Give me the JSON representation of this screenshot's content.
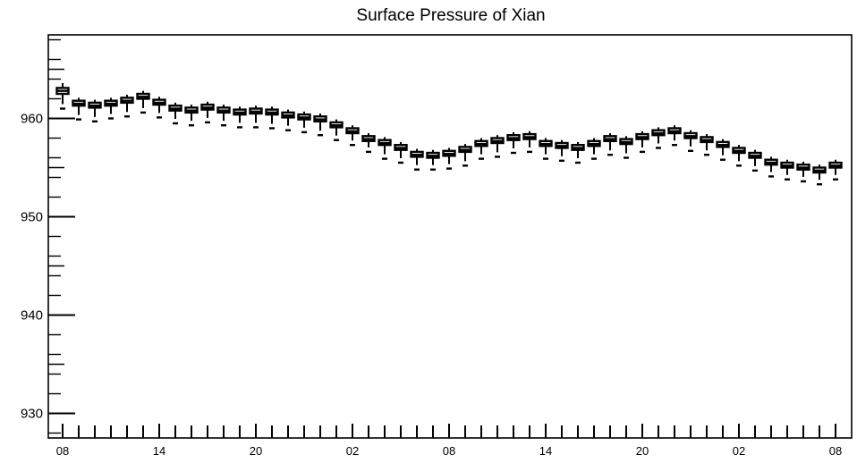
{
  "chart_data": {
    "type": "boxplot",
    "title": "Surface Pressure of Xian",
    "xlabel": "",
    "ylabel": "",
    "ylim": [
      927.5,
      968.5
    ],
    "y_ticks": [
      930,
      940,
      950,
      960
    ],
    "x_tick_labels": [
      "08",
      "14",
      "20",
      "02",
      "08",
      "14",
      "20",
      "02",
      "08"
    ],
    "grid": false,
    "legend": "none",
    "box_color": "#000000",
    "series": [
      {
        "median": [
          962.8,
          961.5,
          961.3,
          961.5,
          961.8,
          962.2,
          961.6,
          961.0,
          960.8,
          961.1,
          960.8,
          960.6,
          960.7,
          960.6,
          960.3,
          960.1,
          959.9,
          959.3,
          958.7,
          957.9,
          957.5,
          957.0,
          956.3,
          956.2,
          956.4,
          956.8,
          957.4,
          957.7,
          958.0,
          958.1,
          957.4,
          957.2,
          957.0,
          957.4,
          957.9,
          957.6,
          958.1,
          958.5,
          958.7,
          958.2,
          957.8,
          957.3,
          956.7,
          956.2,
          955.5,
          955.2,
          955.0,
          954.7,
          955.2
        ],
        "q1": [
          962.5,
          961.3,
          961.1,
          961.3,
          961.6,
          962.0,
          961.4,
          960.8,
          960.6,
          960.9,
          960.6,
          960.4,
          960.5,
          960.4,
          960.1,
          959.9,
          959.7,
          959.1,
          958.5,
          957.7,
          957.3,
          956.8,
          956.1,
          956.0,
          956.2,
          956.6,
          957.2,
          957.5,
          957.8,
          957.9,
          957.2,
          957.0,
          956.8,
          957.2,
          957.7,
          957.4,
          957.9,
          958.3,
          958.5,
          958.0,
          957.6,
          957.1,
          956.5,
          956.0,
          955.3,
          955.0,
          954.8,
          954.5,
          955.0
        ],
        "q3": [
          963.1,
          961.8,
          961.6,
          961.8,
          962.1,
          962.5,
          961.9,
          961.3,
          961.1,
          961.4,
          961.1,
          960.9,
          961.0,
          960.9,
          960.6,
          960.4,
          960.2,
          959.6,
          959.0,
          958.2,
          957.8,
          957.3,
          956.6,
          956.5,
          956.7,
          957.1,
          957.7,
          958.0,
          958.3,
          958.4,
          957.7,
          957.5,
          957.3,
          957.7,
          958.2,
          957.9,
          958.4,
          958.8,
          959.0,
          958.5,
          958.1,
          957.6,
          957.0,
          956.5,
          955.8,
          955.5,
          955.3,
          955.0,
          955.5
        ],
        "min": [
          961.0,
          959.9,
          959.7,
          960.0,
          960.2,
          960.6,
          960.1,
          959.5,
          959.3,
          959.6,
          959.3,
          959.1,
          959.1,
          959.0,
          958.8,
          958.6,
          958.3,
          957.8,
          957.3,
          956.6,
          955.9,
          955.5,
          954.8,
          954.8,
          954.9,
          955.2,
          955.9,
          956.1,
          956.5,
          956.6,
          955.9,
          955.7,
          955.5,
          955.9,
          956.3,
          956.0,
          956.6,
          957.0,
          957.3,
          956.7,
          956.3,
          955.8,
          955.2,
          954.7,
          954.1,
          953.8,
          953.6,
          953.3,
          953.8
        ],
        "max": [
          963.6,
          962.1,
          961.9,
          962.1,
          962.4,
          962.8,
          962.2,
          961.6,
          961.4,
          961.7,
          961.4,
          961.2,
          961.3,
          961.2,
          960.9,
          960.7,
          960.5,
          959.9,
          959.3,
          958.5,
          958.1,
          957.6,
          956.9,
          956.8,
          957.0,
          957.4,
          958.0,
          958.3,
          958.6,
          958.7,
          958.0,
          957.8,
          957.6,
          958.0,
          958.5,
          958.2,
          958.7,
          959.1,
          959.3,
          958.8,
          958.4,
          957.9,
          957.3,
          956.8,
          956.1,
          955.8,
          955.6,
          955.3,
          955.8
        ]
      }
    ]
  }
}
